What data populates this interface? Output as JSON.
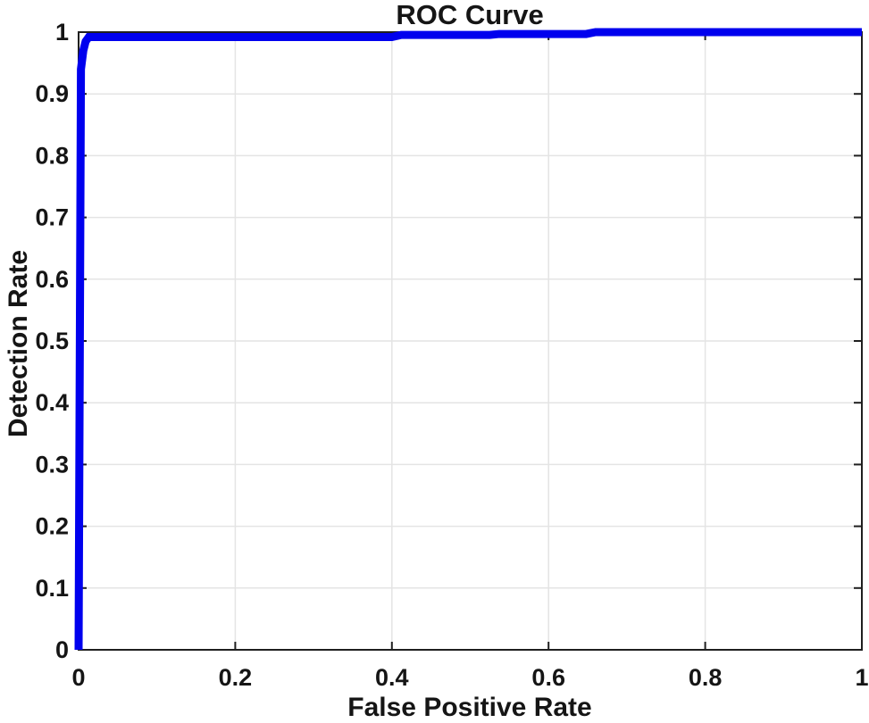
{
  "figure": {
    "background_color": "#FFFFFF"
  },
  "chart_data": {
    "type": "line",
    "title": "ROC Curve",
    "xlabel": "False Positive Rate",
    "ylabel": "Detection Rate",
    "xlim": [
      0,
      1
    ],
    "ylim": [
      0,
      1
    ],
    "xticks": [
      0,
      0.2,
      0.4,
      0.6,
      0.8,
      1
    ],
    "xtick_labels": [
      "0",
      "0.2",
      "0.4",
      "0.6",
      "0.8",
      "1"
    ],
    "yticks": [
      0,
      0.1,
      0.2,
      0.3,
      0.4,
      0.5,
      0.6,
      0.7,
      0.8,
      0.9,
      1
    ],
    "ytick_labels": [
      "0",
      "0.1",
      "0.2",
      "0.3",
      "0.4",
      "0.5",
      "0.6",
      "0.7",
      "0.8",
      "0.9",
      "1"
    ],
    "grid": true,
    "grid_color": "#E4E4E4",
    "axis_color": "#1F1F1F",
    "text_color": "#151515",
    "legend_position": "none",
    "series": [
      {
        "name": "ROC curve",
        "color": "#0000EE",
        "line_width": 9,
        "points": [
          [
            0,
            0
          ],
          [
            0.003,
            0.94
          ],
          [
            0.006,
            0.97
          ],
          [
            0.009,
            0.985
          ],
          [
            0.013,
            0.992
          ],
          [
            0.4,
            0.992
          ],
          [
            0.412,
            0.9955
          ],
          [
            0.525,
            0.9955
          ],
          [
            0.537,
            0.997
          ],
          [
            0.648,
            0.997
          ],
          [
            0.66,
            1.0
          ],
          [
            1.0,
            1.0
          ]
        ]
      }
    ]
  }
}
